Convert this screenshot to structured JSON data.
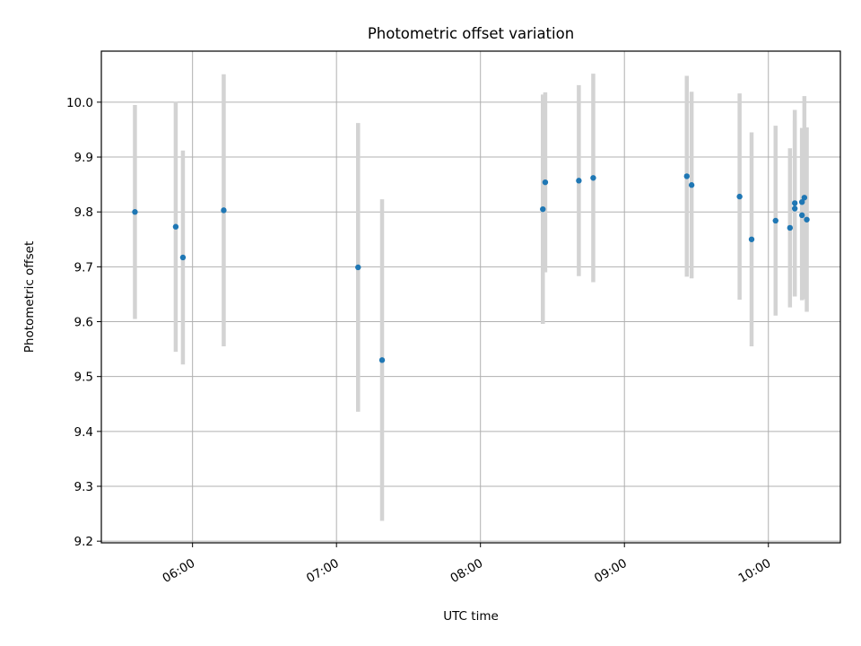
{
  "chart_data": {
    "type": "scatter",
    "title": "Photometric offset variation",
    "xlabel": "UTC time",
    "ylabel": "Photometric offset",
    "x_type": "time",
    "xlim": [
      "05:22",
      "10:30"
    ],
    "ylim": [
      9.197,
      10.093
    ],
    "x_ticks": [
      "06:00",
      "07:00",
      "08:00",
      "09:00",
      "10:00"
    ],
    "y_ticks": [
      "9.2",
      "9.3",
      "9.4",
      "9.5",
      "9.6",
      "9.7",
      "9.8",
      "9.9",
      "10.0"
    ],
    "grid": true,
    "legend": "none",
    "colors": {
      "point": "#1f77b4",
      "errorbar": "#d3d3d3",
      "grid": "#b0b0b0",
      "axes": "#000000"
    },
    "series": [
      {
        "points": [
          {
            "x": "05:36",
            "y": 9.8,
            "err": 0.195
          },
          {
            "x": "05:53",
            "y": 9.773,
            "err": 0.228
          },
          {
            "x": "05:56",
            "y": 9.717,
            "err": 0.195
          },
          {
            "x": "06:13",
            "y": 9.803,
            "err": 0.248
          },
          {
            "x": "07:09",
            "y": 9.699,
            "err": 0.263
          },
          {
            "x": "07:19",
            "y": 9.53,
            "err": 0.293
          },
          {
            "x": "08:26",
            "y": 9.805,
            "err": 0.209
          },
          {
            "x": "08:27",
            "y": 9.854,
            "err": 0.164
          },
          {
            "x": "08:41",
            "y": 9.857,
            "err": 0.174
          },
          {
            "x": "08:47",
            "y": 9.862,
            "err": 0.19
          },
          {
            "x": "09:26",
            "y": 9.865,
            "err": 0.183
          },
          {
            "x": "09:28",
            "y": 9.849,
            "err": 0.17
          },
          {
            "x": "09:48",
            "y": 9.828,
            "err": 0.188
          },
          {
            "x": "09:53",
            "y": 9.75,
            "err": 0.195
          },
          {
            "x": "10:03",
            "y": 9.784,
            "err": 0.173
          },
          {
            "x": "10:09",
            "y": 9.771,
            "err": 0.145
          },
          {
            "x": "10:11",
            "y": 9.816,
            "err": 0.17
          },
          {
            "x": "10:11",
            "y": 9.806,
            "err": 0.16
          },
          {
            "x": "10:14",
            "y": 9.794,
            "err": 0.155
          },
          {
            "x": "10:14",
            "y": 9.818,
            "err": 0.135
          },
          {
            "x": "10:15",
            "y": 9.826,
            "err": 0.185
          },
          {
            "x": "10:16",
            "y": 9.786,
            "err": 0.168
          }
        ]
      }
    ]
  }
}
